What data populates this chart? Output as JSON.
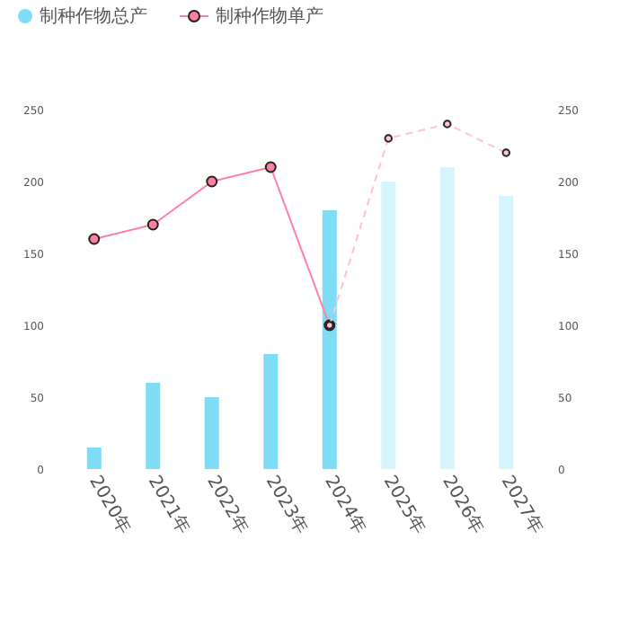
{
  "chart_data": {
    "type": "bar",
    "categories": [
      "2020年",
      "2021年",
      "2022年",
      "2023年",
      "2024年",
      "2025年",
      "2026年",
      "2027年"
    ],
    "ylim": [
      0,
      250
    ],
    "yticks": [
      0,
      50,
      100,
      150,
      200,
      250
    ],
    "y2lim": [
      0,
      250
    ],
    "y2ticks": [
      0,
      50,
      100,
      150,
      200,
      250
    ],
    "legend": "top left",
    "series": [
      {
        "name": "制种作物总产",
        "type": "bar",
        "color": "#7edcf5",
        "colors": [
          "#7edcf5",
          "#7edcf5",
          "#7edcf5",
          "#7edcf5",
          "#7edcf5",
          "#d6f4fb",
          "#d6f4fb",
          "#d6f4fb"
        ],
        "values": [
          15,
          60,
          50,
          80,
          180,
          200,
          210,
          190
        ]
      },
      {
        "name": "制种作物单产",
        "type": "line",
        "axis": "y2",
        "color": "#ff7fa3",
        "marker": "circle",
        "line_style": "solid",
        "values": [
          160,
          170,
          200,
          210,
          100,
          null,
          null,
          null
        ]
      },
      {
        "type": "line",
        "axis": "y2",
        "color": "#ffc2d3",
        "marker": "circle",
        "line_style": "dashed",
        "values": [
          null,
          null,
          null,
          null,
          100,
          230,
          240,
          220
        ]
      }
    ]
  }
}
